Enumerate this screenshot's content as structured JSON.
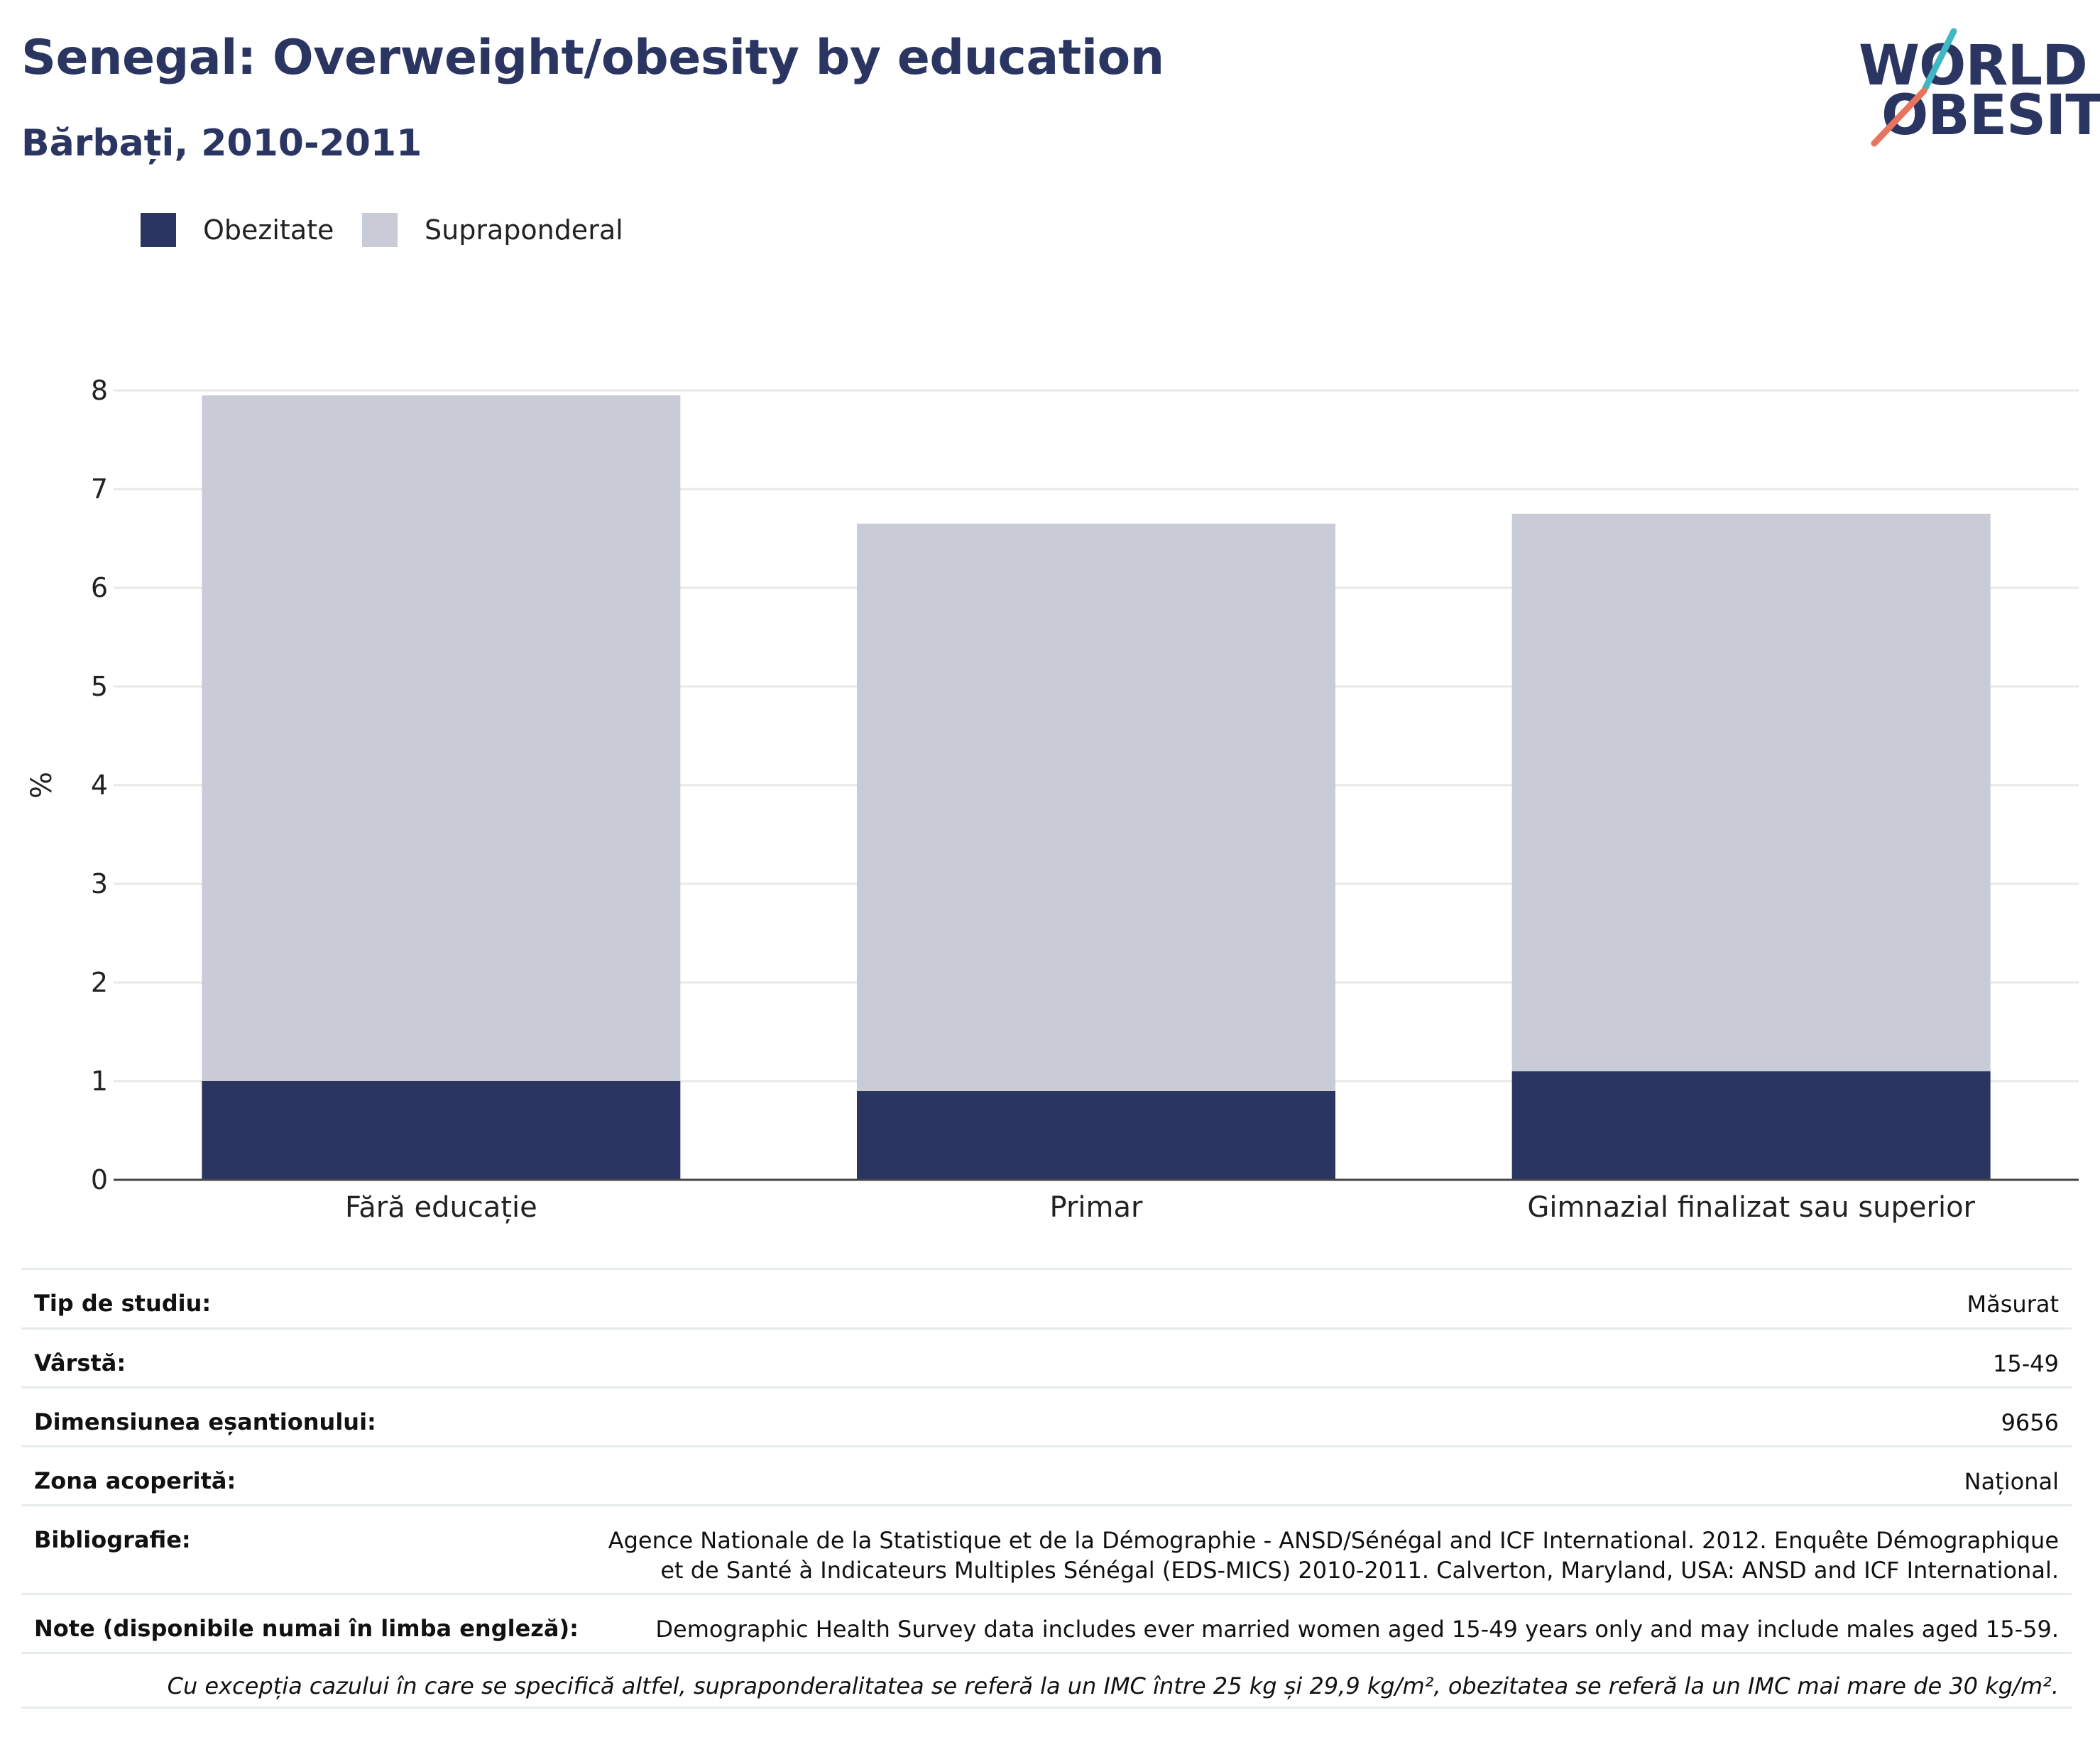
{
  "header": {
    "title": "Senegal: Overweight/obesity by education",
    "subtitle": "Bărbați, 2010-2011"
  },
  "logo": {
    "line1": "WORLD",
    "line2": "OBESITY",
    "slash_colors": [
      "#3fb8c4",
      "#e8735f"
    ]
  },
  "legend": [
    {
      "label": "Obezitate",
      "color": "#2b3562"
    },
    {
      "label": "Supraponderal",
      "color": "#c9cbd6"
    }
  ],
  "chart_data": {
    "type": "bar",
    "stacked": true,
    "categories": [
      "Fără educație",
      "Primar",
      "Gimnazial finalizat sau superior"
    ],
    "series": [
      {
        "name": "Obezitate",
        "values": [
          1.0,
          0.9,
          1.1
        ],
        "color": "#2b3562"
      },
      {
        "name": "Supraponderal",
        "values": [
          6.95,
          5.75,
          5.65
        ],
        "color": "#c9cbd6"
      }
    ],
    "ylabel": "%",
    "xlabel": "",
    "ylim": [
      0,
      8
    ],
    "yticks": [
      "0",
      "1",
      "2",
      "3",
      "4",
      "5",
      "6",
      "7",
      "8"
    ],
    "grid": true,
    "legend_position": "top-left"
  },
  "info": {
    "rows": [
      {
        "label": "Tip de studiu:",
        "value": "Măsurat"
      },
      {
        "label": "Vârstă:",
        "value": "15-49"
      },
      {
        "label": "Dimensiunea eșantionului:",
        "value": "9656"
      },
      {
        "label": "Zona acoperită:",
        "value": "Național"
      },
      {
        "label": "Bibliografie:",
        "value": "Agence Nationale de la Statistique et de la Démographie - ANSD/Sénégal and ICF International. 2012. Enquête Démographique et de Santé à Indicateurs Multiples Sénégal (EDS-MICS) 2010-2011. Calverton, Maryland, USA: ANSD and ICF International."
      },
      {
        "label": "Note (disponibile numai în limba engleză):",
        "value": "Demographic Health Survey data includes ever married women aged 15-49 years only and may include males aged 15-59."
      }
    ],
    "footnote": "Cu excepția cazului în care se specifică altfel, supraponderalitatea se referă la un IMC între 25 kg și 29,9 kg/m², obezitatea se referă la un IMC mai mare de 30 kg/m²."
  }
}
